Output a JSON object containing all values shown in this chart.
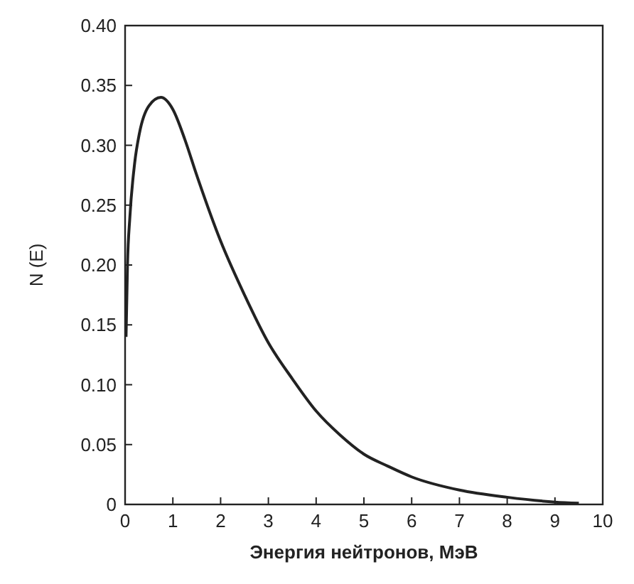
{
  "chart_data": {
    "type": "line",
    "xlabel": "Энергия нейтронов, МэВ",
    "ylabel": "N (E)",
    "x": [
      0.02,
      0.05,
      0.1,
      0.2,
      0.3,
      0.5,
      0.75,
      1.0,
      1.25,
      1.5,
      2,
      2.5,
      3,
      3.5,
      4,
      4.5,
      5,
      5.5,
      6,
      7,
      8,
      9,
      9.5
    ],
    "series": [
      {
        "color": "#222222",
        "values": [
          0.14,
          0.2,
          0.24,
          0.285,
          0.31,
          0.333,
          0.34,
          0.33,
          0.305,
          0.275,
          0.22,
          0.175,
          0.135,
          0.105,
          0.078,
          0.058,
          0.042,
          0.032,
          0.023,
          0.012,
          0.006,
          0.002,
          0.001
        ]
      }
    ],
    "xlim": [
      0,
      10
    ],
    "xticks": [
      0,
      1,
      2,
      3,
      4,
      5,
      6,
      7,
      8,
      9,
      10
    ],
    "ylim": [
      0,
      0.4
    ],
    "yticks": [
      {
        "value": 0,
        "label": "0"
      },
      {
        "value": 0.05,
        "label": "0.05"
      },
      {
        "value": 0.1,
        "label": "0.10"
      },
      {
        "value": 0.15,
        "label": "0.15"
      },
      {
        "value": 0.2,
        "label": "0.20"
      },
      {
        "value": 0.25,
        "label": "0.25"
      },
      {
        "value": 0.3,
        "label": "0.30"
      },
      {
        "value": 0.35,
        "label": "0.35"
      },
      {
        "value": 0.4,
        "label": "0.40"
      }
    ],
    "grid": false,
    "marker": "none",
    "line_style": "solid"
  }
}
